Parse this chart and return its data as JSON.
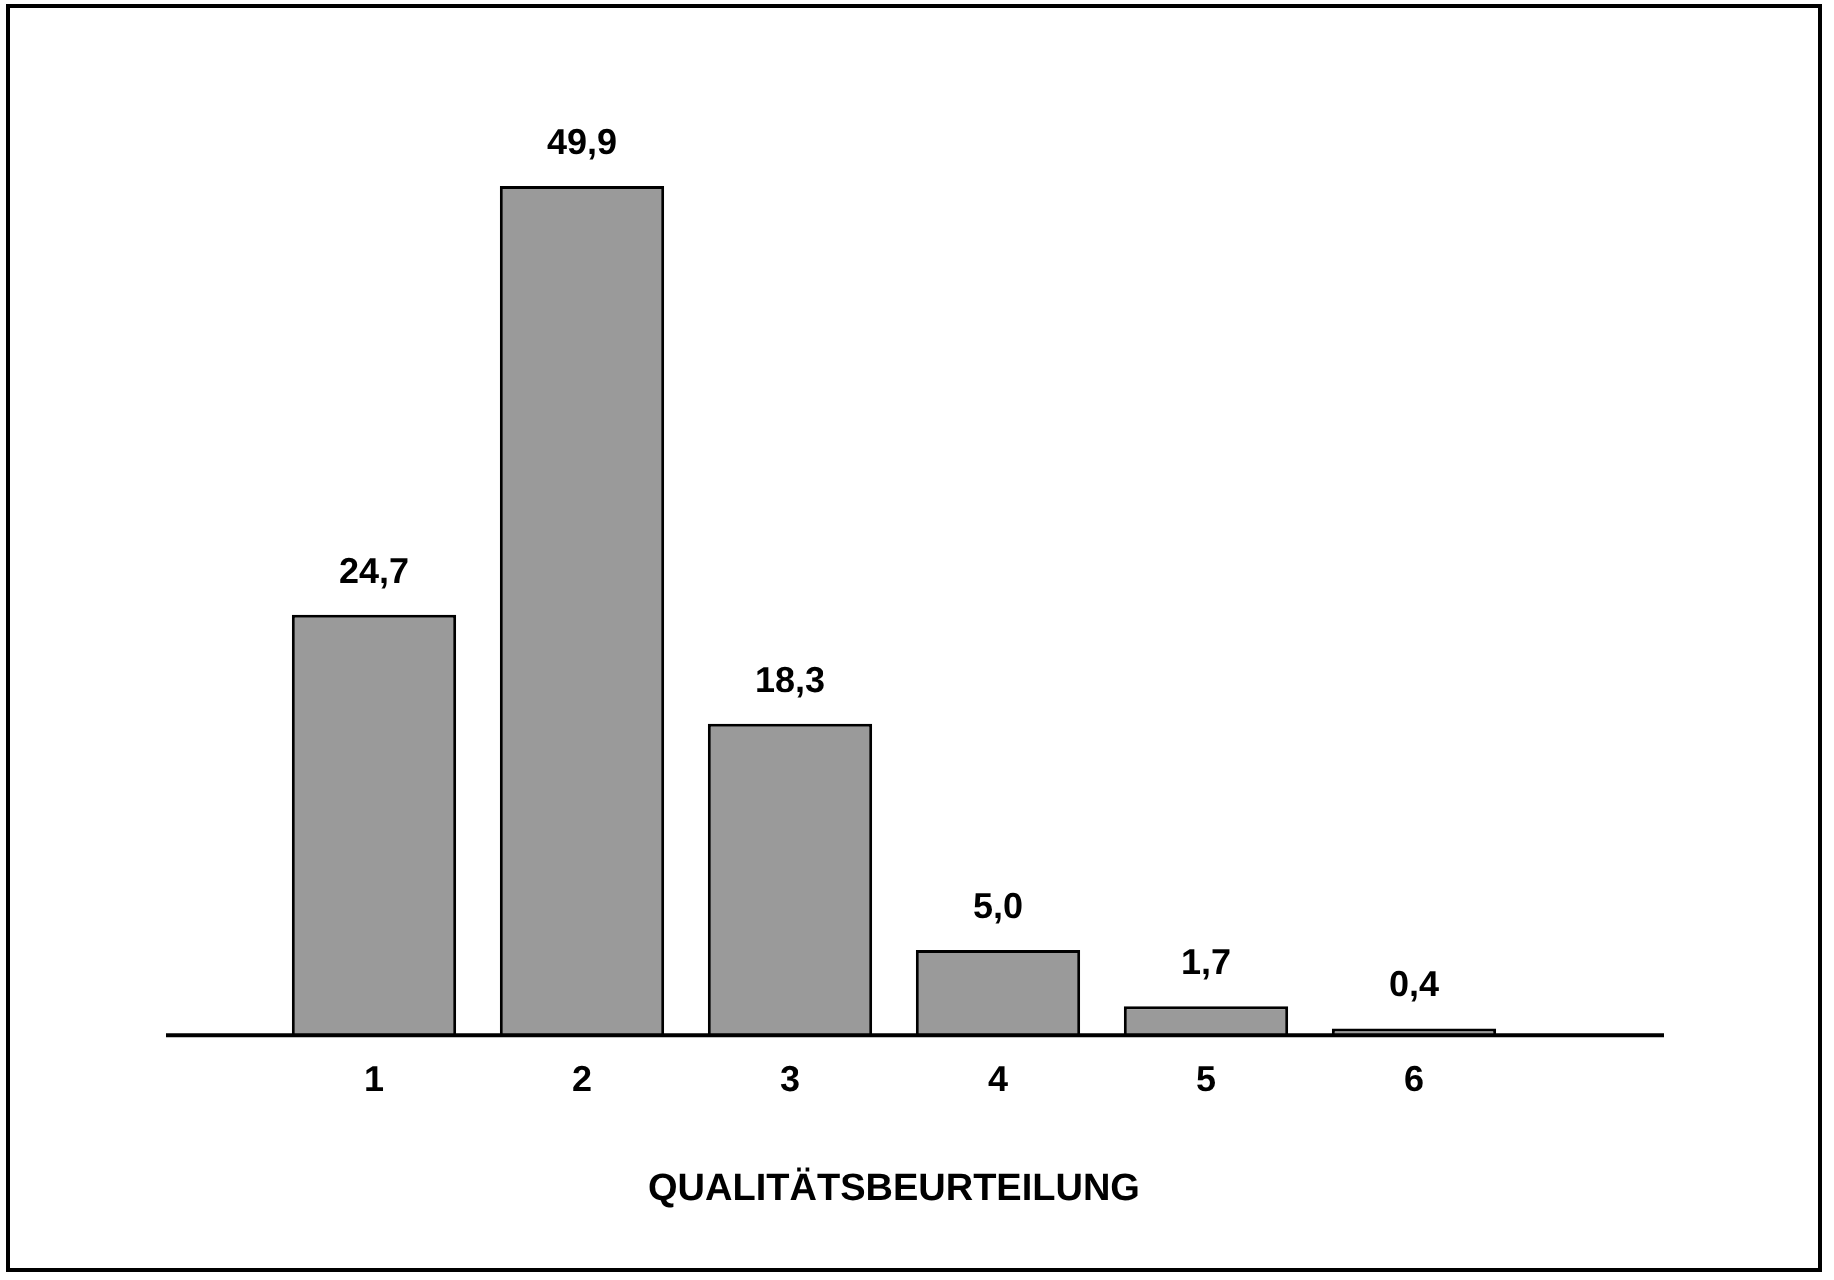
{
  "chart_data": {
    "type": "bar",
    "xlabel": "QUALITÄTSBEURTEILUNG",
    "categories": [
      "1",
      "2",
      "3",
      "4",
      "5",
      "6"
    ],
    "values": [
      24.7,
      49.9,
      18.3,
      5.0,
      1.7,
      0.4
    ],
    "value_labels": [
      "24,7",
      "49,9",
      "18,3",
      "5,0",
      "1,7",
      "0,4"
    ],
    "color": "#9a9a9a",
    "grid": false,
    "legend": false,
    "tick_labels": "x"
  }
}
